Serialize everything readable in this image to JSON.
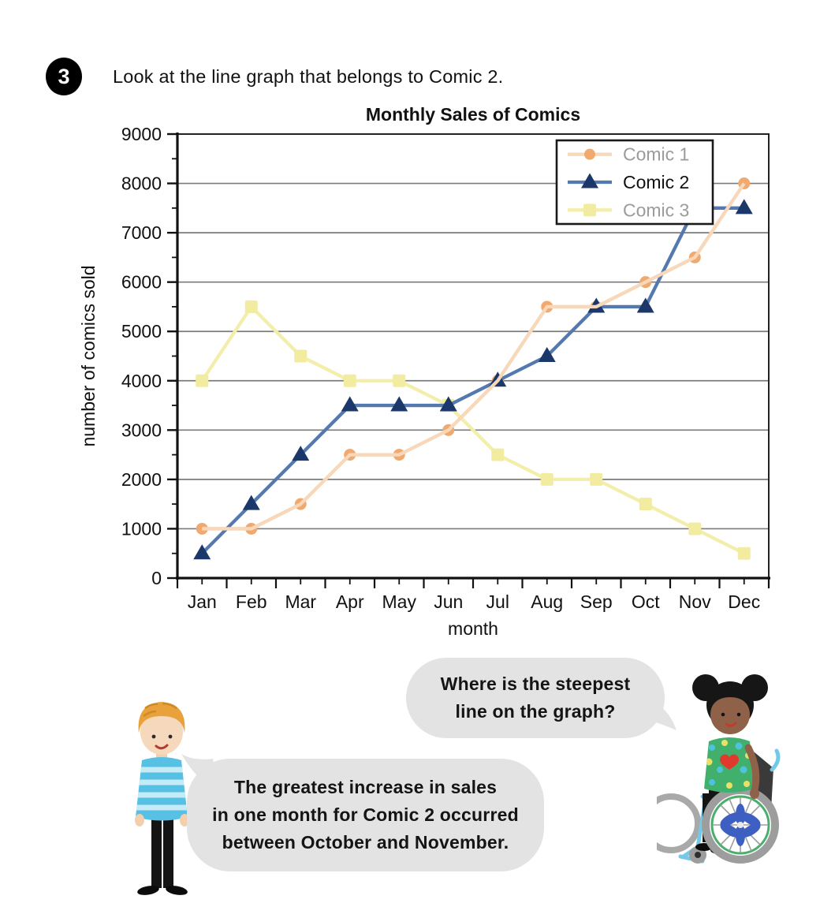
{
  "question": {
    "number": "3",
    "instruction": "Look at the line graph that belongs to Comic 2."
  },
  "chart_data": {
    "type": "line",
    "title": "Monthly Sales of Comics",
    "xlabel": "month",
    "ylabel": "number of comics sold",
    "categories": [
      "Jan",
      "Feb",
      "Mar",
      "Apr",
      "May",
      "Jun",
      "Jul",
      "Aug",
      "Sep",
      "Oct",
      "Nov",
      "Dec"
    ],
    "series": [
      {
        "name": "Comic 1",
        "values": [
          1000,
          1000,
          1500,
          2500,
          2500,
          3000,
          4000,
          5500,
          5500,
          6000,
          6500,
          8000
        ],
        "marker": "circle",
        "line_color": "#f8d8ba",
        "marker_color": "#f0a96e",
        "legend_text_color": "#9b9b9b"
      },
      {
        "name": "Comic 2",
        "values": [
          500,
          1500,
          2500,
          3500,
          3500,
          3500,
          4000,
          4500,
          5500,
          5500,
          7500,
          7500
        ],
        "marker": "triangle",
        "line_color": "#5379ae",
        "marker_color": "#1c3769",
        "legend_text_color": "#111111"
      },
      {
        "name": "Comic 3",
        "values": [
          4000,
          5500,
          4500,
          4000,
          4000,
          3500,
          2500,
          2000,
          2000,
          1500,
          1000,
          500
        ],
        "marker": "square",
        "line_color": "#f3eeab",
        "marker_color": "#f2eca0",
        "legend_text_color": "#9b9b9b"
      }
    ],
    "ylim": [
      0,
      9000
    ],
    "ytick_step": 1000,
    "y_minor_tick_step": 500,
    "grid": true,
    "grid_color": "#7b7b7b",
    "axis_color": "#222222",
    "legend_position": "top-right",
    "legend_border_color": "#1a1a1a"
  },
  "speech_bubbles": {
    "girl": {
      "line1": "Where is the steepest",
      "line2": "line on the graph?"
    },
    "boy": {
      "line1": "The greatest increase in sales",
      "line2": "in one month for Comic 2 occurred",
      "line3": "between October and November."
    }
  },
  "illustrations": {
    "boy": "boy with orange hair, blue striped sweater, black trousers",
    "girl": "girl with afro-puff hair, green patterned top with red heart, sitting in a light-blue wheelchair",
    "bubble_color": "#e3e3e3",
    "badge_color": "#000000"
  }
}
